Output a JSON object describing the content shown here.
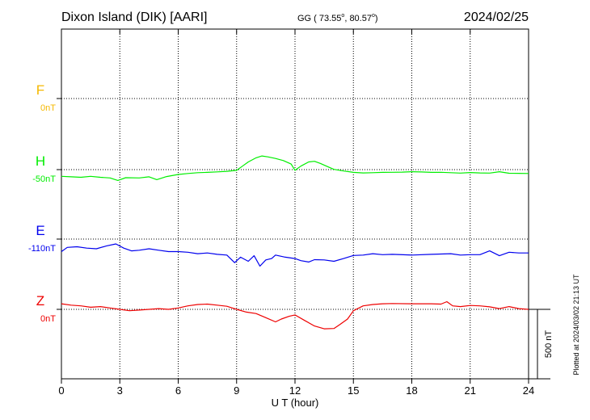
{
  "header": {
    "station": "Dixon Island (DIK)  [AARI]",
    "coords": "GG ( 73.55",
    "coords_lat_deg": "o",
    "coords_sep": ",  80.57",
    "coords_lon_deg": "o",
    "coords_close": ")",
    "date": "2024/02/25"
  },
  "side_note": "Plotted at 2024/03/02 21:13 UT",
  "chart_data": {
    "type": "line",
    "title": "Dixon Island (DIK)  [AARI]",
    "xlabel": "U T (hour)",
    "ylabel": "",
    "xlim": [
      0,
      24
    ],
    "x_ticks": [
      0,
      3,
      6,
      9,
      12,
      15,
      18,
      21,
      24
    ],
    "x_tick_labels": [
      "0",
      "3",
      "6",
      "9",
      "12",
      "15",
      "18",
      "21",
      "24"
    ],
    "scale_bar": {
      "value": 500,
      "label": "500 nT"
    },
    "grid": true,
    "series": [
      {
        "name": "F",
        "baseline_label": "0nT",
        "color": "#f5b800",
        "x": [],
        "values": []
      },
      {
        "name": "H",
        "baseline_label": "-50nT",
        "color": "#00ee00",
        "x": [
          0,
          0.5,
          1,
          1.5,
          2,
          2.5,
          2.9,
          3.3,
          4,
          4.5,
          4.9,
          5.4,
          6,
          6.5,
          7,
          7.5,
          8,
          8.5,
          9,
          9.3,
          9.6,
          10,
          10.3,
          10.6,
          11,
          11.4,
          11.8,
          12,
          12.3,
          12.7,
          13,
          13.3,
          13.7,
          14,
          14.5,
          15,
          15.5,
          16,
          16.5,
          17,
          17.5,
          18,
          18.5,
          19,
          19.5,
          20,
          20.5,
          21,
          21.5,
          22,
          22.5,
          23,
          23.5,
          24
        ],
        "values": [
          -48,
          -52,
          -55,
          -48,
          -55,
          -60,
          -78,
          -58,
          -60,
          -52,
          -72,
          -50,
          -35,
          -28,
          -22,
          -20,
          -16,
          -12,
          -5,
          25,
          55,
          85,
          98,
          92,
          80,
          65,
          40,
          -5,
          25,
          55,
          60,
          45,
          20,
          2,
          -10,
          -20,
          -24,
          -22,
          -20,
          -19,
          -18,
          -15,
          -17,
          -20,
          -19,
          -22,
          -25,
          -21,
          -24,
          -25,
          -15,
          -26,
          -27,
          -28
        ]
      },
      {
        "name": "E",
        "baseline_label": "-110nT",
        "color": "#0000ee",
        "x": [
          0,
          0.3,
          0.8,
          1.3,
          1.8,
          2.3,
          2.8,
          3.2,
          3.6,
          4,
          4.5,
          5,
          5.5,
          6,
          6.5,
          7,
          7.5,
          8,
          8.5,
          8.9,
          9.2,
          9.6,
          9.9,
          10.2,
          10.5,
          10.8,
          11,
          11.5,
          12,
          12.3,
          12.7,
          13,
          13.5,
          14,
          14.5,
          15,
          15.5,
          16,
          16.5,
          17,
          18,
          19,
          20,
          20.5,
          21,
          21.5,
          22,
          22.5,
          23,
          23.5,
          24
        ],
        "values": [
          -90,
          -60,
          -55,
          -65,
          -70,
          -50,
          -35,
          -65,
          -85,
          -80,
          -70,
          -80,
          -90,
          -90,
          -95,
          -105,
          -100,
          -110,
          -115,
          -170,
          -130,
          -160,
          -120,
          -195,
          -150,
          -140,
          -115,
          -130,
          -140,
          -155,
          -165,
          -148,
          -150,
          -160,
          -140,
          -118,
          -115,
          -105,
          -112,
          -110,
          -115,
          -110,
          -105,
          -115,
          -112,
          -112,
          -85,
          -120,
          -95,
          -100,
          -100
        ]
      },
      {
        "name": "Z",
        "baseline_label": "0nT",
        "color": "#ee0000",
        "x": [
          0,
          0.5,
          1,
          1.5,
          2,
          2.5,
          3,
          3.5,
          4,
          4.5,
          5,
          5.5,
          6,
          6.5,
          7,
          7.5,
          8,
          8.5,
          9,
          9.5,
          10,
          10.5,
          11,
          11.3,
          11.7,
          12,
          12.5,
          13,
          13.5,
          14,
          14.3,
          14.7,
          15,
          15.5,
          16,
          16.5,
          17,
          18,
          19,
          19.5,
          19.8,
          20.1,
          20.5,
          21,
          21.5,
          22,
          22.5,
          23,
          23.5,
          24
        ],
        "values": [
          40,
          30,
          25,
          15,
          20,
          10,
          0,
          -10,
          -5,
          0,
          5,
          0,
          10,
          25,
          35,
          38,
          30,
          22,
          0,
          -20,
          -30,
          -60,
          -90,
          -70,
          -50,
          -40,
          -80,
          -120,
          -140,
          -138,
          -110,
          -70,
          -10,
          25,
          35,
          40,
          42,
          40,
          40,
          38,
          55,
          25,
          20,
          28,
          25,
          18,
          5,
          20,
          5,
          0
        ]
      }
    ]
  }
}
